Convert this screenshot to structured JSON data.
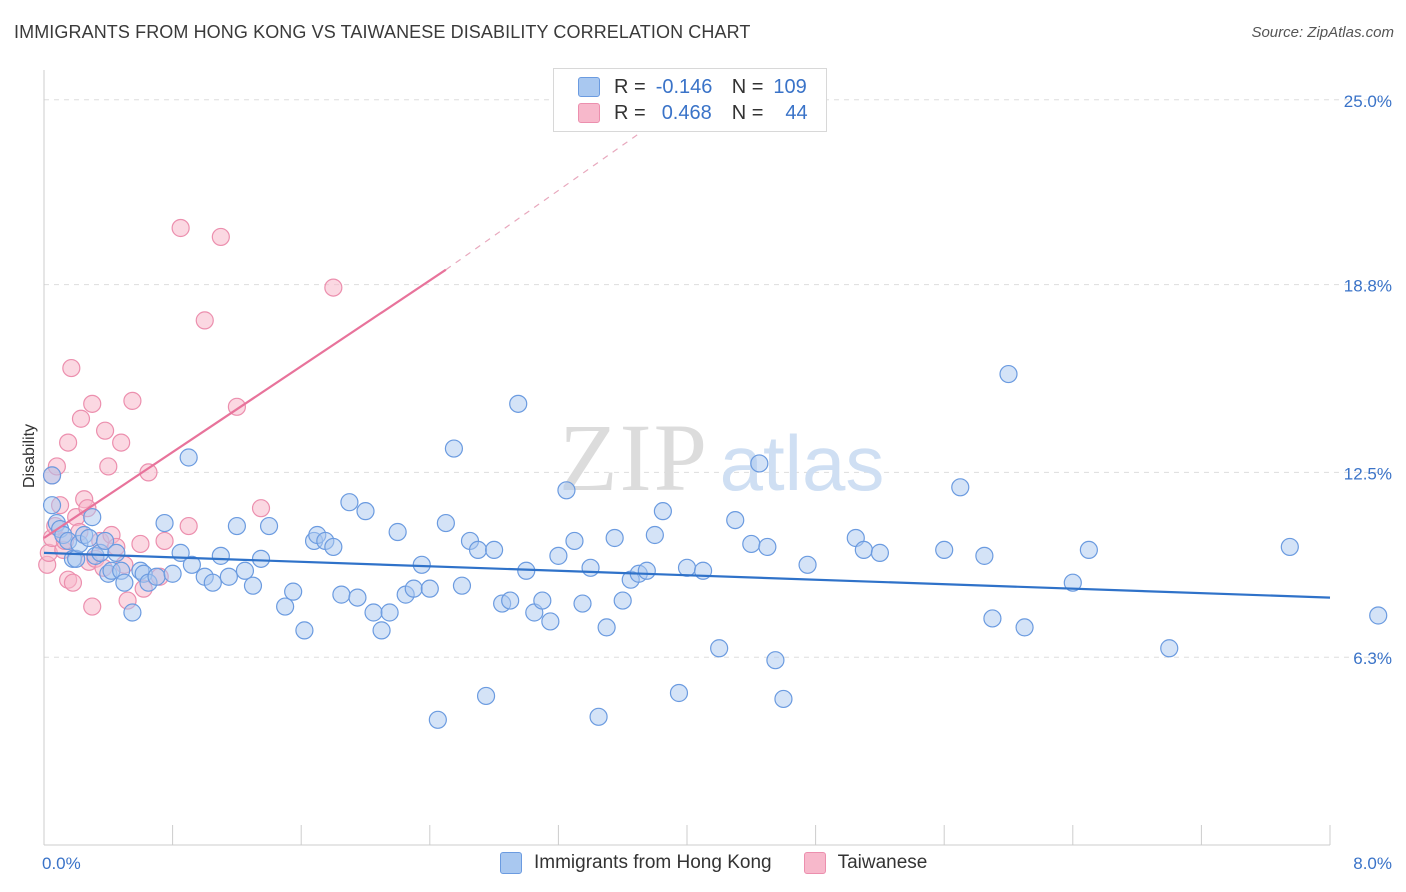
{
  "title": "IMMIGRANTS FROM HONG KONG VS TAIWANESE DISABILITY CORRELATION CHART",
  "source": "Source: ZipAtlas.com",
  "watermark": {
    "zip": "ZIP",
    "atlas": "atlas"
  },
  "legend": {
    "series1": {
      "r_label": "R =",
      "r_value": "-0.146",
      "n_label": "N =",
      "n_value": "109"
    },
    "series2": {
      "r_label": "R =",
      "r_value": "0.468",
      "n_label": "N =",
      "n_value": "44"
    }
  },
  "bottom_legend": {
    "series1": "Immigrants from Hong Kong",
    "series2": "Taiwanese"
  },
  "colors": {
    "blue_fill": "#a9c8f0",
    "blue_stroke": "#6b9be0",
    "blue_line": "#2f72c9",
    "pink_fill": "#f7b8cb",
    "pink_stroke": "#ec8fae",
    "pink_line": "#e8739b",
    "axis_label": "#3a73c8",
    "grid": "#dddddd"
  },
  "chart_data": {
    "type": "scatter",
    "title": "IMMIGRANTS FROM HONG KONG VS TAIWANESE DISABILITY CORRELATION CHART",
    "xlabel": "",
    "ylabel": "Disability",
    "xlim": [
      0,
      8.0
    ],
    "ylim": [
      0,
      26.0
    ],
    "x_tick_labels": [
      "0.0%",
      "8.0%"
    ],
    "y_ticks": [
      6.3,
      12.5,
      18.8,
      25.0
    ],
    "y_tick_labels": [
      "6.3%",
      "12.5%",
      "18.8%",
      "25.0%"
    ],
    "grid": true,
    "series": [
      {
        "name": "Immigrants from Hong Kong",
        "trend": {
          "x0": 0.0,
          "y0": 9.8,
          "x1": 8.0,
          "y1": 8.3
        },
        "points": [
          [
            0.05,
            12.4
          ],
          [
            0.05,
            11.4
          ],
          [
            0.08,
            10.8
          ],
          [
            0.1,
            10.6
          ],
          [
            0.12,
            10.4
          ],
          [
            0.15,
            10.2
          ],
          [
            0.18,
            9.6
          ],
          [
            0.2,
            9.6
          ],
          [
            0.22,
            10.1
          ],
          [
            0.25,
            10.4
          ],
          [
            0.28,
            10.3
          ],
          [
            0.3,
            11.0
          ],
          [
            0.32,
            9.7
          ],
          [
            0.35,
            9.8
          ],
          [
            0.38,
            10.2
          ],
          [
            0.4,
            9.1
          ],
          [
            0.42,
            9.2
          ],
          [
            0.45,
            9.8
          ],
          [
            0.48,
            9.2
          ],
          [
            0.5,
            8.8
          ],
          [
            0.55,
            7.8
          ],
          [
            0.6,
            9.2
          ],
          [
            0.62,
            9.1
          ],
          [
            0.65,
            8.8
          ],
          [
            0.7,
            9.0
          ],
          [
            0.75,
            10.8
          ],
          [
            0.8,
            9.1
          ],
          [
            0.85,
            9.8
          ],
          [
            0.9,
            13.0
          ],
          [
            0.92,
            9.4
          ],
          [
            1.0,
            9.0
          ],
          [
            1.05,
            8.8
          ],
          [
            1.1,
            9.7
          ],
          [
            1.15,
            9.0
          ],
          [
            1.2,
            10.7
          ],
          [
            1.25,
            9.2
          ],
          [
            1.3,
            8.7
          ],
          [
            1.35,
            9.6
          ],
          [
            1.4,
            10.7
          ],
          [
            1.5,
            8.0
          ],
          [
            1.55,
            8.5
          ],
          [
            1.62,
            7.2
          ],
          [
            1.68,
            10.2
          ],
          [
            1.7,
            10.4
          ],
          [
            1.75,
            10.2
          ],
          [
            1.8,
            10.0
          ],
          [
            1.85,
            8.4
          ],
          [
            1.9,
            11.5
          ],
          [
            1.95,
            8.3
          ],
          [
            2.0,
            11.2
          ],
          [
            2.05,
            7.8
          ],
          [
            2.1,
            7.2
          ],
          [
            2.15,
            7.8
          ],
          [
            2.2,
            10.5
          ],
          [
            2.25,
            8.4
          ],
          [
            2.3,
            8.6
          ],
          [
            2.35,
            9.4
          ],
          [
            2.4,
            8.6
          ],
          [
            2.45,
            4.2
          ],
          [
            2.5,
            10.8
          ],
          [
            2.55,
            13.3
          ],
          [
            2.6,
            8.7
          ],
          [
            2.65,
            10.2
          ],
          [
            2.7,
            9.9
          ],
          [
            2.75,
            5.0
          ],
          [
            2.8,
            9.9
          ],
          [
            2.85,
            8.1
          ],
          [
            2.9,
            8.2
          ],
          [
            2.95,
            14.8
          ],
          [
            3.0,
            9.2
          ],
          [
            3.05,
            7.8
          ],
          [
            3.1,
            8.2
          ],
          [
            3.15,
            7.5
          ],
          [
            3.2,
            9.7
          ],
          [
            3.25,
            11.9
          ],
          [
            3.3,
            10.2
          ],
          [
            3.35,
            8.1
          ],
          [
            3.4,
            9.3
          ],
          [
            3.45,
            4.3
          ],
          [
            3.5,
            7.3
          ],
          [
            3.55,
            10.3
          ],
          [
            3.6,
            8.2
          ],
          [
            3.65,
            8.9
          ],
          [
            3.7,
            9.1
          ],
          [
            3.75,
            9.2
          ],
          [
            3.8,
            10.4
          ],
          [
            3.85,
            11.2
          ],
          [
            3.95,
            5.1
          ],
          [
            4.0,
            9.3
          ],
          [
            4.1,
            9.2
          ],
          [
            4.2,
            6.6
          ],
          [
            4.3,
            10.9
          ],
          [
            4.4,
            10.1
          ],
          [
            4.45,
            12.8
          ],
          [
            4.5,
            10.0
          ],
          [
            4.55,
            6.2
          ],
          [
            4.6,
            4.9
          ],
          [
            4.75,
            9.4
          ],
          [
            5.05,
            10.3
          ],
          [
            5.1,
            9.9
          ],
          [
            5.2,
            9.8
          ],
          [
            5.6,
            9.9
          ],
          [
            5.7,
            12.0
          ],
          [
            5.85,
            9.7
          ],
          [
            5.9,
            7.6
          ],
          [
            6.0,
            15.8
          ],
          [
            6.1,
            7.3
          ],
          [
            6.4,
            8.8
          ],
          [
            6.5,
            9.9
          ],
          [
            7.0,
            6.6
          ],
          [
            7.75,
            10.0
          ],
          [
            8.3,
            7.7
          ]
        ]
      },
      {
        "name": "Taiwanese",
        "trend": {
          "x0": 0.0,
          "y0": 10.3,
          "x1": 2.5,
          "y1": 19.3,
          "dash_x1": 4.0,
          "dash_y1": 25.0
        },
        "points": [
          [
            0.02,
            9.4
          ],
          [
            0.03,
            9.8
          ],
          [
            0.05,
            10.3
          ],
          [
            0.05,
            12.4
          ],
          [
            0.07,
            10.7
          ],
          [
            0.08,
            12.7
          ],
          [
            0.1,
            11.4
          ],
          [
            0.12,
            9.9
          ],
          [
            0.13,
            10.2
          ],
          [
            0.15,
            13.5
          ],
          [
            0.15,
            8.9
          ],
          [
            0.17,
            16.0
          ],
          [
            0.18,
            8.8
          ],
          [
            0.2,
            11.0
          ],
          [
            0.22,
            10.5
          ],
          [
            0.23,
            14.3
          ],
          [
            0.25,
            11.6
          ],
          [
            0.27,
            11.3
          ],
          [
            0.28,
            9.5
          ],
          [
            0.3,
            8.0
          ],
          [
            0.3,
            14.8
          ],
          [
            0.32,
            9.6
          ],
          [
            0.35,
            10.2
          ],
          [
            0.37,
            9.3
          ],
          [
            0.38,
            13.9
          ],
          [
            0.4,
            12.7
          ],
          [
            0.42,
            10.4
          ],
          [
            0.45,
            10.0
          ],
          [
            0.48,
            13.5
          ],
          [
            0.5,
            9.4
          ],
          [
            0.52,
            8.2
          ],
          [
            0.55,
            14.9
          ],
          [
            0.6,
            10.1
          ],
          [
            0.62,
            8.6
          ],
          [
            0.65,
            12.5
          ],
          [
            0.72,
            9.0
          ],
          [
            0.75,
            10.2
          ],
          [
            0.85,
            20.7
          ],
          [
            0.9,
            10.7
          ],
          [
            1.0,
            17.6
          ],
          [
            1.1,
            20.4
          ],
          [
            1.2,
            14.7
          ],
          [
            1.35,
            11.3
          ],
          [
            1.8,
            18.7
          ]
        ]
      }
    ]
  }
}
